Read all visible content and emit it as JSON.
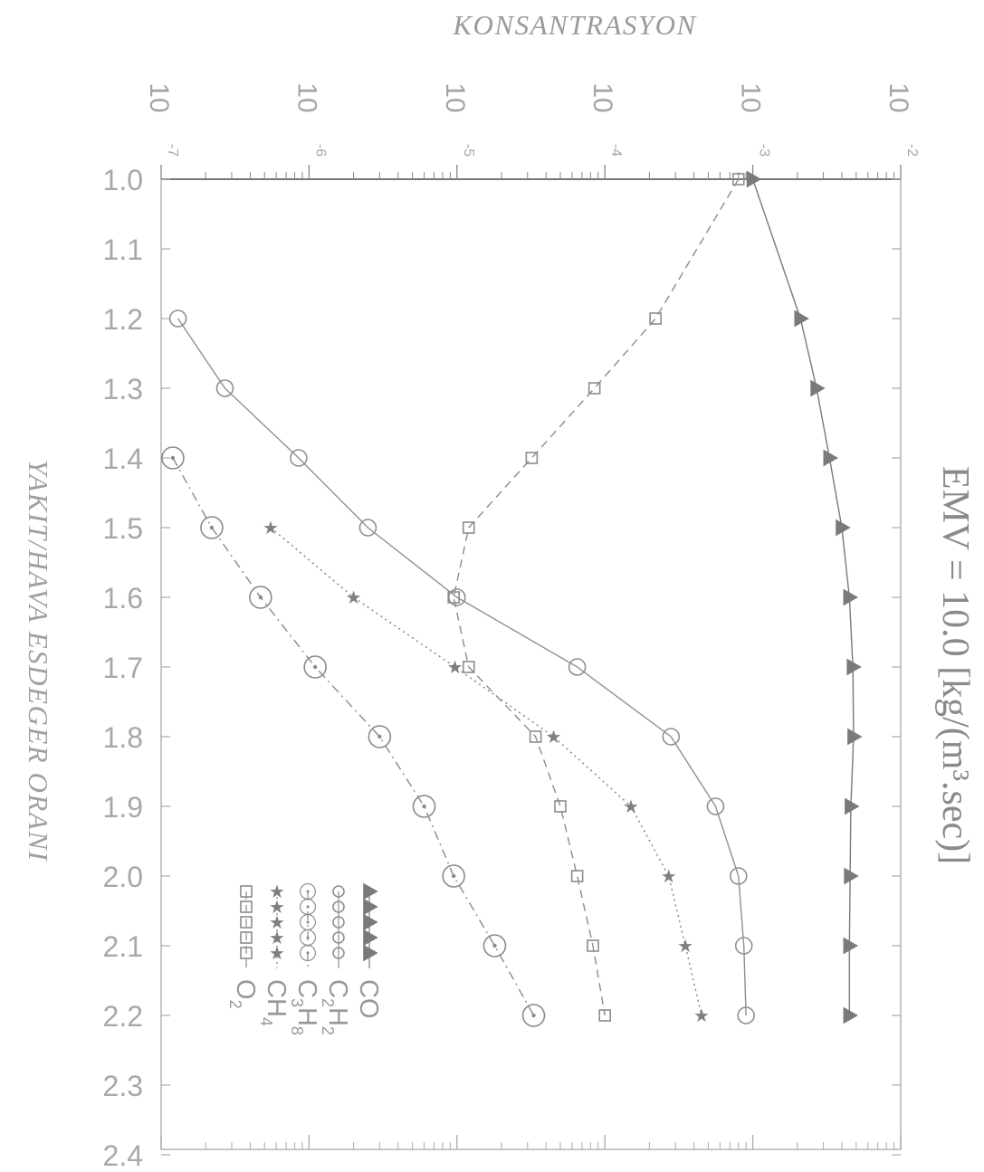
{
  "chart_data": {
    "type": "line",
    "title": "EMV = 10.0 [kg/(m³.sec)]",
    "xlabel": "YAKIT/HAVA ESDEGER ORANI",
    "ylabel": "KONSANTRASYON",
    "xlim": [
      1.0,
      2.4
    ],
    "ylim": [
      1e-07,
      0.01
    ],
    "y_scale": "log",
    "x_ticks": [
      "1.0",
      "1.1",
      "1.2",
      "1.3",
      "1.4",
      "1.5",
      "1.6",
      "1.7",
      "1.8",
      "1.9",
      "2.0",
      "2.1",
      "2.2",
      "2.3",
      "2.4"
    ],
    "y_ticks": [
      {
        "base": "10",
        "exp": "-7"
      },
      {
        "base": "10",
        "exp": "-6"
      },
      {
        "base": "10",
        "exp": "-5"
      },
      {
        "base": "10",
        "exp": "-4"
      },
      {
        "base": "10",
        "exp": "-3"
      },
      {
        "base": "10",
        "exp": "-2"
      }
    ],
    "legend_position": "bottom-right",
    "grid": false,
    "series": [
      {
        "name": "CO",
        "legend_label": "CO",
        "marker": "triangle",
        "color": "#7a7a7a",
        "x": [
          1.0,
          1.2,
          1.3,
          1.4,
          1.5,
          1.6,
          1.7,
          1.8,
          1.9,
          2.0,
          2.1,
          2.2
        ],
        "y": [
          0.001,
          0.0021,
          0.0027,
          0.0033,
          0.004,
          0.0045,
          0.00475,
          0.0048,
          0.0046,
          0.00455,
          0.0045,
          0.0045
        ]
      },
      {
        "name": "C2H2",
        "legend_label": "C",
        "legend_sub1": "2",
        "legend_mid": "H",
        "legend_sub2": "2",
        "marker": "circle",
        "color": "#909090",
        "x": [
          1.2,
          1.3,
          1.4,
          1.5,
          1.6,
          1.7,
          1.8,
          1.9,
          2.0,
          2.1,
          2.2
        ],
        "y": [
          1.3e-07,
          2.7e-07,
          8.5e-07,
          2.5e-06,
          1e-05,
          6.5e-05,
          0.00028,
          0.00056,
          0.0008,
          0.00087,
          0.0009
        ]
      },
      {
        "name": "C3H8",
        "legend_label": "C",
        "legend_sub1": "3",
        "legend_mid": "H",
        "legend_sub2": "8",
        "marker": "circle-dot",
        "color": "#8a8a8a",
        "x": [
          1.4,
          1.5,
          1.6,
          1.7,
          1.8,
          1.9,
          2.0,
          2.1,
          2.2
        ],
        "y": [
          1.2e-07,
          2.2e-07,
          4.7e-07,
          1.1e-06,
          3e-06,
          6e-06,
          9.5e-06,
          1.8e-05,
          3.3e-05
        ]
      },
      {
        "name": "CH4",
        "legend_label": "CH",
        "legend_sub1": "4",
        "marker": "star",
        "color": "#7f7f7f",
        "x": [
          1.5,
          1.6,
          1.7,
          1.8,
          1.9,
          2.0,
          2.1,
          2.2
        ],
        "y": [
          5.5e-07,
          2e-06,
          9.7e-06,
          4.5e-05,
          0.00015,
          0.00027,
          0.00035,
          0.00045
        ]
      },
      {
        "name": "O2",
        "legend_label": "O",
        "legend_sub1": "2",
        "marker": "square",
        "color": "#8c8c8c",
        "x": [
          1.0,
          1.2,
          1.3,
          1.4,
          1.5,
          1.6,
          1.7,
          1.8,
          1.9,
          2.0,
          2.1,
          2.2
        ],
        "y": [
          0.0008,
          0.00022,
          8.5e-05,
          3.2e-05,
          1.2e-05,
          9.5e-06,
          1.2e-05,
          3.4e-05,
          5e-05,
          6.5e-05,
          8.3e-05,
          0.0001
        ]
      }
    ]
  }
}
